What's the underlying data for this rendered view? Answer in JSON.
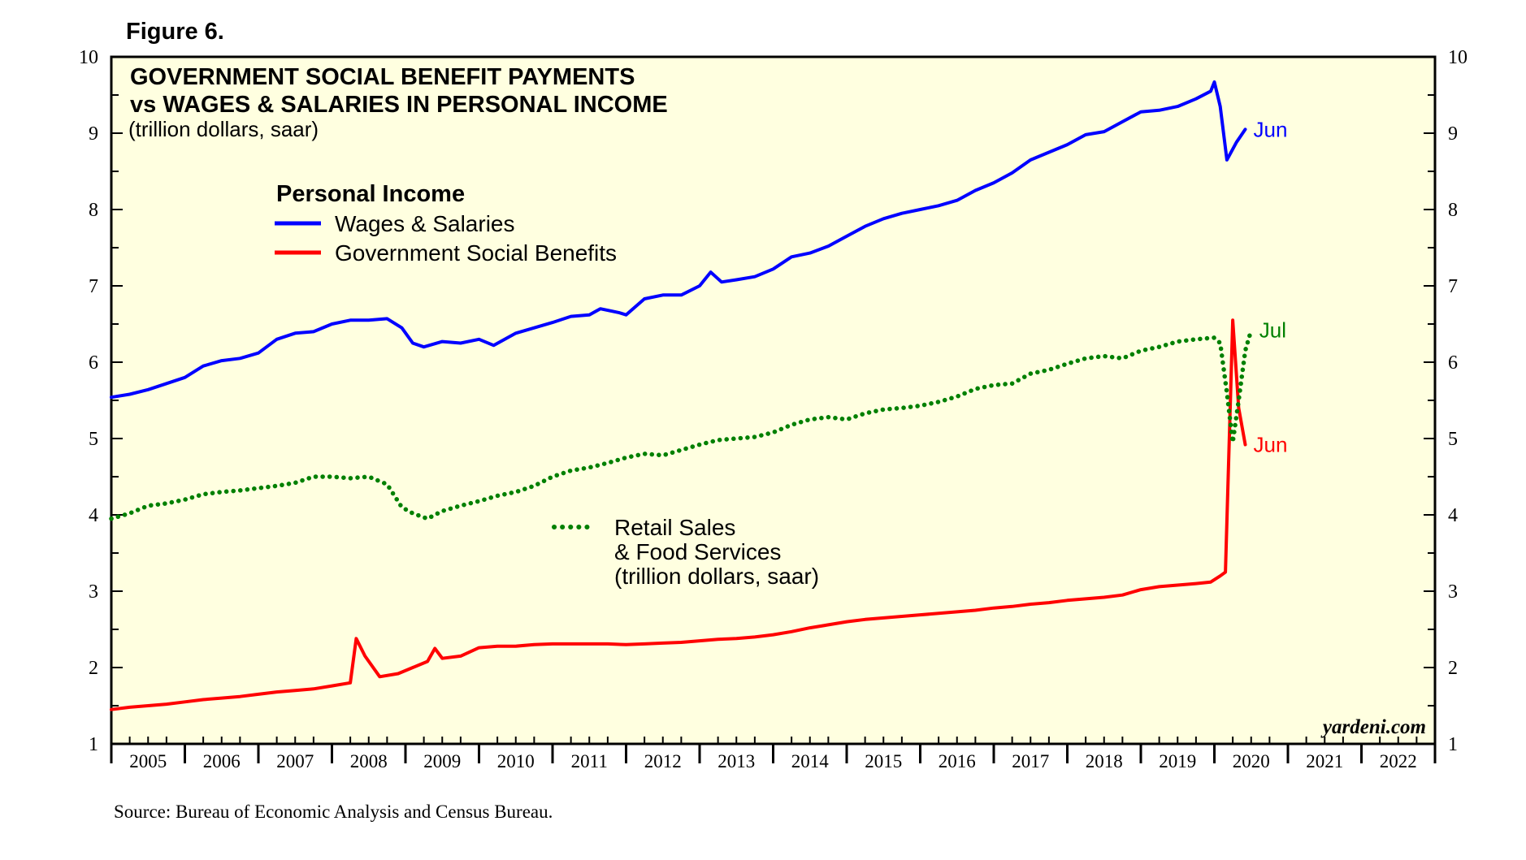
{
  "figure_label": "Figure 6.",
  "source": "Source: Bureau of Economic Analysis and Census Bureau.",
  "brand": "yardeni.com",
  "colors": {
    "background": "#FFFFE0",
    "wages": "#0000FF",
    "benefits": "#FF0000",
    "retail": "#008000",
    "frame": "#000000"
  },
  "chart_data": {
    "type": "line",
    "title_lines": [
      "GOVERNMENT SOCIAL BENEFIT PAYMENTS",
      "vs WAGES & SALARIES IN PERSONAL INCOME"
    ],
    "subtitle": "(trillion dollars, saar)",
    "ylim": [
      1,
      10
    ],
    "yticks": [
      1,
      2,
      3,
      4,
      5,
      6,
      7,
      8,
      9,
      10
    ],
    "xlim": [
      2005,
      2023
    ],
    "year_labels": [
      "2005",
      "2006",
      "2007",
      "2008",
      "2009",
      "2010",
      "2011",
      "2012",
      "2013",
      "2014",
      "2015",
      "2016",
      "2017",
      "2018",
      "2019",
      "2020",
      "2021",
      "2022"
    ],
    "legend": {
      "heading": "Personal Income",
      "entries": [
        {
          "name": "Wages & Salaries",
          "color": "#0000FF"
        },
        {
          "name": "Government Social Benefits",
          "color": "#FF0000"
        }
      ]
    },
    "retail_legend": {
      "line1": "Retail Sales",
      "line2": "& Food Services",
      "line3": "(trillion dollars, saar)"
    },
    "series": [
      {
        "name": "Wages & Salaries",
        "style": "solid",
        "color": "#0000FF",
        "end_label": "Jun",
        "points": [
          [
            2005.0,
            5.54
          ],
          [
            2005.25,
            5.58
          ],
          [
            2005.5,
            5.64
          ],
          [
            2005.75,
            5.72
          ],
          [
            2006.0,
            5.8
          ],
          [
            2006.25,
            5.95
          ],
          [
            2006.5,
            6.02
          ],
          [
            2006.75,
            6.05
          ],
          [
            2007.0,
            6.12
          ],
          [
            2007.25,
            6.3
          ],
          [
            2007.5,
            6.38
          ],
          [
            2007.75,
            6.4
          ],
          [
            2008.0,
            6.5
          ],
          [
            2008.25,
            6.55
          ],
          [
            2008.5,
            6.55
          ],
          [
            2008.75,
            6.57
          ],
          [
            2008.95,
            6.45
          ],
          [
            2009.1,
            6.25
          ],
          [
            2009.25,
            6.2
          ],
          [
            2009.5,
            6.27
          ],
          [
            2009.75,
            6.25
          ],
          [
            2010.0,
            6.3
          ],
          [
            2010.2,
            6.22
          ],
          [
            2010.5,
            6.38
          ],
          [
            2010.75,
            6.45
          ],
          [
            2011.0,
            6.52
          ],
          [
            2011.25,
            6.6
          ],
          [
            2011.5,
            6.62
          ],
          [
            2011.65,
            6.7
          ],
          [
            2011.9,
            6.65
          ],
          [
            2012.0,
            6.62
          ],
          [
            2012.25,
            6.83
          ],
          [
            2012.5,
            6.88
          ],
          [
            2012.75,
            6.88
          ],
          [
            2013.0,
            7.0
          ],
          [
            2013.15,
            7.18
          ],
          [
            2013.3,
            7.05
          ],
          [
            2013.5,
            7.08
          ],
          [
            2013.75,
            7.12
          ],
          [
            2014.0,
            7.22
          ],
          [
            2014.25,
            7.38
          ],
          [
            2014.5,
            7.43
          ],
          [
            2014.75,
            7.52
          ],
          [
            2015.0,
            7.65
          ],
          [
            2015.25,
            7.78
          ],
          [
            2015.5,
            7.88
          ],
          [
            2015.75,
            7.95
          ],
          [
            2016.0,
            8.0
          ],
          [
            2016.25,
            8.05
          ],
          [
            2016.5,
            8.12
          ],
          [
            2016.75,
            8.25
          ],
          [
            2017.0,
            8.35
          ],
          [
            2017.25,
            8.48
          ],
          [
            2017.5,
            8.65
          ],
          [
            2017.75,
            8.75
          ],
          [
            2018.0,
            8.85
          ],
          [
            2018.25,
            8.98
          ],
          [
            2018.5,
            9.02
          ],
          [
            2018.75,
            9.15
          ],
          [
            2019.0,
            9.28
          ],
          [
            2019.25,
            9.3
          ],
          [
            2019.5,
            9.35
          ],
          [
            2019.75,
            9.45
          ],
          [
            2019.95,
            9.55
          ],
          [
            2020.0,
            9.67
          ],
          [
            2020.08,
            9.35
          ],
          [
            2020.17,
            8.65
          ],
          [
            2020.3,
            8.88
          ],
          [
            2020.42,
            9.05
          ]
        ]
      },
      {
        "name": "Government Social Benefits",
        "style": "solid",
        "color": "#FF0000",
        "end_label": "Jun",
        "points": [
          [
            2005.0,
            1.45
          ],
          [
            2005.25,
            1.48
          ],
          [
            2005.5,
            1.5
          ],
          [
            2005.75,
            1.52
          ],
          [
            2006.0,
            1.55
          ],
          [
            2006.25,
            1.58
          ],
          [
            2006.5,
            1.6
          ],
          [
            2006.75,
            1.62
          ],
          [
            2007.0,
            1.65
          ],
          [
            2007.25,
            1.68
          ],
          [
            2007.5,
            1.7
          ],
          [
            2007.75,
            1.72
          ],
          [
            2008.0,
            1.76
          ],
          [
            2008.25,
            1.8
          ],
          [
            2008.33,
            2.38
          ],
          [
            2008.45,
            2.15
          ],
          [
            2008.65,
            1.88
          ],
          [
            2008.9,
            1.92
          ],
          [
            2009.1,
            2.0
          ],
          [
            2009.3,
            2.08
          ],
          [
            2009.4,
            2.25
          ],
          [
            2009.5,
            2.12
          ],
          [
            2009.75,
            2.15
          ],
          [
            2010.0,
            2.26
          ],
          [
            2010.25,
            2.28
          ],
          [
            2010.5,
            2.28
          ],
          [
            2010.75,
            2.3
          ],
          [
            2011.0,
            2.31
          ],
          [
            2011.5,
            2.31
          ],
          [
            2011.75,
            2.31
          ],
          [
            2012.0,
            2.3
          ],
          [
            2012.25,
            2.31
          ],
          [
            2012.5,
            2.32
          ],
          [
            2012.75,
            2.33
          ],
          [
            2013.0,
            2.35
          ],
          [
            2013.25,
            2.37
          ],
          [
            2013.5,
            2.38
          ],
          [
            2013.75,
            2.4
          ],
          [
            2014.0,
            2.43
          ],
          [
            2014.25,
            2.47
          ],
          [
            2014.5,
            2.52
          ],
          [
            2014.75,
            2.56
          ],
          [
            2015.0,
            2.6
          ],
          [
            2015.25,
            2.63
          ],
          [
            2015.5,
            2.65
          ],
          [
            2015.75,
            2.67
          ],
          [
            2016.0,
            2.69
          ],
          [
            2016.25,
            2.71
          ],
          [
            2016.5,
            2.73
          ],
          [
            2016.75,
            2.75
          ],
          [
            2017.0,
            2.78
          ],
          [
            2017.25,
            2.8
          ],
          [
            2017.5,
            2.83
          ],
          [
            2017.75,
            2.85
          ],
          [
            2018.0,
            2.88
          ],
          [
            2018.25,
            2.9
          ],
          [
            2018.5,
            2.92
          ],
          [
            2018.75,
            2.95
          ],
          [
            2019.0,
            3.02
          ],
          [
            2019.25,
            3.06
          ],
          [
            2019.5,
            3.08
          ],
          [
            2019.75,
            3.1
          ],
          [
            2019.95,
            3.12
          ],
          [
            2020.08,
            3.2
          ],
          [
            2020.15,
            3.25
          ],
          [
            2020.25,
            6.55
          ],
          [
            2020.33,
            5.4
          ],
          [
            2020.42,
            4.92
          ]
        ]
      },
      {
        "name": "Retail Sales & Food Services",
        "style": "dotted",
        "color": "#008000",
        "end_label": "Jul",
        "points": [
          [
            2005.0,
            3.95
          ],
          [
            2005.25,
            4.02
          ],
          [
            2005.5,
            4.12
          ],
          [
            2005.75,
            4.15
          ],
          [
            2006.0,
            4.2
          ],
          [
            2006.25,
            4.27
          ],
          [
            2006.5,
            4.3
          ],
          [
            2006.75,
            4.32
          ],
          [
            2007.0,
            4.35
          ],
          [
            2007.25,
            4.38
          ],
          [
            2007.5,
            4.42
          ],
          [
            2007.75,
            4.5
          ],
          [
            2008.0,
            4.5
          ],
          [
            2008.25,
            4.48
          ],
          [
            2008.5,
            4.5
          ],
          [
            2008.75,
            4.4
          ],
          [
            2008.95,
            4.1
          ],
          [
            2009.1,
            4.02
          ],
          [
            2009.3,
            3.95
          ],
          [
            2009.5,
            4.05
          ],
          [
            2009.75,
            4.12
          ],
          [
            2010.0,
            4.18
          ],
          [
            2010.25,
            4.25
          ],
          [
            2010.5,
            4.3
          ],
          [
            2010.75,
            4.38
          ],
          [
            2011.0,
            4.5
          ],
          [
            2011.25,
            4.58
          ],
          [
            2011.5,
            4.62
          ],
          [
            2011.75,
            4.68
          ],
          [
            2012.0,
            4.75
          ],
          [
            2012.25,
            4.8
          ],
          [
            2012.5,
            4.78
          ],
          [
            2012.75,
            4.85
          ],
          [
            2013.0,
            4.92
          ],
          [
            2013.25,
            4.98
          ],
          [
            2013.5,
            5.0
          ],
          [
            2013.75,
            5.02
          ],
          [
            2014.0,
            5.08
          ],
          [
            2014.25,
            5.18
          ],
          [
            2014.5,
            5.25
          ],
          [
            2014.75,
            5.28
          ],
          [
            2015.0,
            5.25
          ],
          [
            2015.25,
            5.33
          ],
          [
            2015.5,
            5.38
          ],
          [
            2015.75,
            5.4
          ],
          [
            2016.0,
            5.43
          ],
          [
            2016.25,
            5.48
          ],
          [
            2016.5,
            5.55
          ],
          [
            2016.75,
            5.65
          ],
          [
            2017.0,
            5.7
          ],
          [
            2017.25,
            5.72
          ],
          [
            2017.5,
            5.85
          ],
          [
            2017.75,
            5.9
          ],
          [
            2018.0,
            5.98
          ],
          [
            2018.25,
            6.05
          ],
          [
            2018.5,
            6.08
          ],
          [
            2018.75,
            6.05
          ],
          [
            2019.0,
            6.15
          ],
          [
            2019.25,
            6.2
          ],
          [
            2019.5,
            6.27
          ],
          [
            2019.75,
            6.3
          ],
          [
            2020.0,
            6.32
          ],
          [
            2020.08,
            6.25
          ],
          [
            2020.17,
            5.6
          ],
          [
            2020.25,
            4.95
          ],
          [
            2020.33,
            5.5
          ],
          [
            2020.42,
            6.15
          ],
          [
            2020.5,
            6.42
          ]
        ]
      }
    ]
  }
}
